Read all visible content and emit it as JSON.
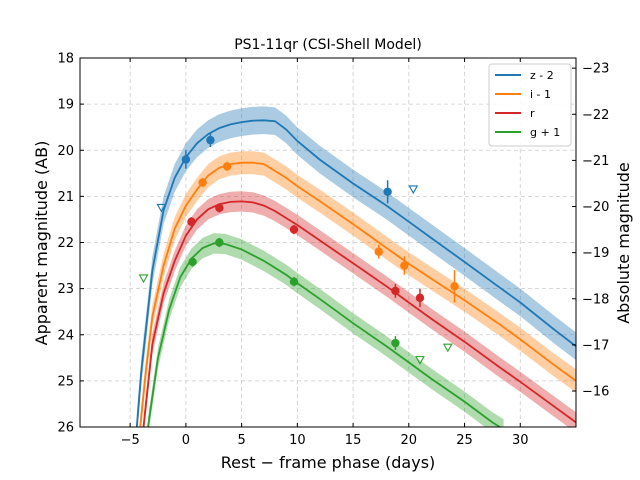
{
  "chart_data": {
    "type": "line",
    "title": "PS1-11qr (CSI-Shell Model)",
    "xlabel": "Rest − frame phase (days)",
    "ylabel": "Apparent magnitude (AB)",
    "ylabel_right": "Absolute magnitude",
    "xlim": [
      -9.5,
      35
    ],
    "ylim": [
      26,
      18
    ],
    "ylim_right": [
      -15.22,
      -23.22
    ],
    "x_ticks": [
      -5,
      0,
      5,
      10,
      15,
      20,
      25,
      30
    ],
    "x_tick_labels": [
      "−5",
      "0",
      "5",
      "10",
      "15",
      "20",
      "25",
      "30"
    ],
    "y_ticks": [
      18,
      19,
      20,
      21,
      22,
      23,
      24,
      25,
      26
    ],
    "y_tick_labels": [
      "18",
      "19",
      "20",
      "21",
      "22",
      "23",
      "24",
      "25",
      "26"
    ],
    "y_right_ticks": [
      -16,
      -17,
      -18,
      -19,
      -20,
      -21,
      -22,
      -23
    ],
    "y_right_tick_labels": [
      "−16",
      "−17",
      "−18",
      "−19",
      "−20",
      "−21",
      "−22",
      "−23"
    ],
    "grid": true,
    "legend_position": "top-right",
    "series": [
      {
        "name": "z - 2",
        "color": "#1f77b4",
        "model": [
          [
            -4.4,
            26
          ],
          [
            -4,
            24.8
          ],
          [
            -3,
            22.6
          ],
          [
            -2,
            21.3
          ],
          [
            -1,
            20.6
          ],
          [
            0,
            20.15
          ],
          [
            1,
            19.85
          ],
          [
            2,
            19.65
          ],
          [
            3,
            19.52
          ],
          [
            4,
            19.44
          ],
          [
            5,
            19.39
          ],
          [
            6,
            19.36
          ],
          [
            7,
            19.35
          ],
          [
            8,
            19.37
          ],
          [
            9,
            19.55
          ],
          [
            10,
            19.8
          ],
          [
            12,
            20.2
          ],
          [
            15,
            20.72
          ],
          [
            18,
            21.2
          ],
          [
            20,
            21.55
          ],
          [
            22,
            21.9
          ],
          [
            25,
            22.42
          ],
          [
            28,
            22.95
          ],
          [
            30,
            23.3
          ],
          [
            33,
            23.88
          ],
          [
            35,
            24.25
          ]
        ],
        "band_width": 0.3,
        "points": [
          {
            "x": 0,
            "y": 20.2,
            "err": 0.2
          },
          {
            "x": 2.2,
            "y": 19.78,
            "err": 0.15
          },
          {
            "x": 18.1,
            "y": 20.9,
            "err": 0.25
          }
        ],
        "upper_limits": [
          {
            "x": -2.2,
            "y": 21.25
          },
          {
            "x": 20.4,
            "y": 20.85
          }
        ]
      },
      {
        "name": "i - 1",
        "color": "#ff7f0e",
        "model": [
          [
            -4.1,
            26
          ],
          [
            -3.6,
            24.8
          ],
          [
            -3,
            23.6
          ],
          [
            -2,
            22.5
          ],
          [
            -1,
            21.7
          ],
          [
            0,
            21.2
          ],
          [
            1,
            20.85
          ],
          [
            2,
            20.55
          ],
          [
            3,
            20.38
          ],
          [
            4,
            20.3
          ],
          [
            5,
            20.27
          ],
          [
            6,
            20.27
          ],
          [
            7,
            20.3
          ],
          [
            8,
            20.45
          ],
          [
            9,
            20.6
          ],
          [
            10,
            20.78
          ],
          [
            12,
            21.1
          ],
          [
            15,
            21.6
          ],
          [
            18,
            22.12
          ],
          [
            20,
            22.46
          ],
          [
            22,
            22.78
          ],
          [
            25,
            23.25
          ],
          [
            28,
            23.75
          ],
          [
            30,
            24.1
          ],
          [
            33,
            24.65
          ],
          [
            35,
            25.0
          ]
        ],
        "band_width": 0.25,
        "points": [
          {
            "x": 1.5,
            "y": 20.7,
            "err": 0.1
          },
          {
            "x": 3.7,
            "y": 20.35,
            "err": 0.1
          },
          {
            "x": 17.3,
            "y": 22.2,
            "err": 0.15
          },
          {
            "x": 19.6,
            "y": 22.5,
            "err": 0.2
          },
          {
            "x": 24.1,
            "y": 22.95,
            "err": 0.35
          }
        ],
        "upper_limits": []
      },
      {
        "name": "r",
        "color": "#d62728",
        "model": [
          [
            -3.8,
            26
          ],
          [
            -3,
            24.2
          ],
          [
            -2,
            23.1
          ],
          [
            -1,
            22.4
          ],
          [
            0,
            21.85
          ],
          [
            1,
            21.5
          ],
          [
            2,
            21.28
          ],
          [
            3,
            21.17
          ],
          [
            4,
            21.12
          ],
          [
            5,
            21.11
          ],
          [
            6,
            21.13
          ],
          [
            7,
            21.2
          ],
          [
            8,
            21.32
          ],
          [
            10,
            21.62
          ],
          [
            12,
            21.95
          ],
          [
            15,
            22.45
          ],
          [
            18,
            22.95
          ],
          [
            20,
            23.3
          ],
          [
            22,
            23.65
          ],
          [
            25,
            24.15
          ],
          [
            28,
            24.68
          ],
          [
            30,
            25.02
          ],
          [
            33,
            25.55
          ],
          [
            35,
            25.9
          ]
        ],
        "band_width": 0.22,
        "points": [
          {
            "x": 0.5,
            "y": 21.55,
            "err": 0.1
          },
          {
            "x": 3,
            "y": 21.25,
            "err": 0.1
          },
          {
            "x": 9.7,
            "y": 21.72,
            "err": 0.1
          },
          {
            "x": 18.8,
            "y": 23.05,
            "err": 0.15
          },
          {
            "x": 21,
            "y": 23.2,
            "err": 0.2
          }
        ],
        "upper_limits": []
      },
      {
        "name": "g + 1",
        "color": "#2ca02c",
        "model": [
          [
            -3.4,
            26
          ],
          [
            -2.5,
            24.5
          ],
          [
            -1.5,
            23.45
          ],
          [
            -0.5,
            22.75
          ],
          [
            0.5,
            22.35
          ],
          [
            1.5,
            22.12
          ],
          [
            2.5,
            22.02
          ],
          [
            3.5,
            22.03
          ],
          [
            5,
            22.15
          ],
          [
            7,
            22.4
          ],
          [
            9,
            22.7
          ],
          [
            10,
            22.88
          ],
          [
            12,
            23.22
          ],
          [
            15,
            23.75
          ],
          [
            18,
            24.25
          ],
          [
            20,
            24.6
          ],
          [
            22,
            24.95
          ],
          [
            25,
            25.45
          ],
          [
            27.5,
            25.9
          ],
          [
            28.5,
            26.05
          ]
        ],
        "band_width": 0.22,
        "points": [
          {
            "x": 0.6,
            "y": 22.42,
            "err": 0.1
          },
          {
            "x": 3,
            "y": 22.0,
            "err": 0.1
          },
          {
            "x": 9.7,
            "y": 22.85,
            "err": 0.1
          },
          {
            "x": 18.8,
            "y": 24.18,
            "err": 0.15
          }
        ],
        "upper_limits": [
          {
            "x": -3.8,
            "y": 22.78
          },
          {
            "x": 21,
            "y": 24.55
          },
          {
            "x": 23.5,
            "y": 24.28
          }
        ]
      }
    ]
  }
}
